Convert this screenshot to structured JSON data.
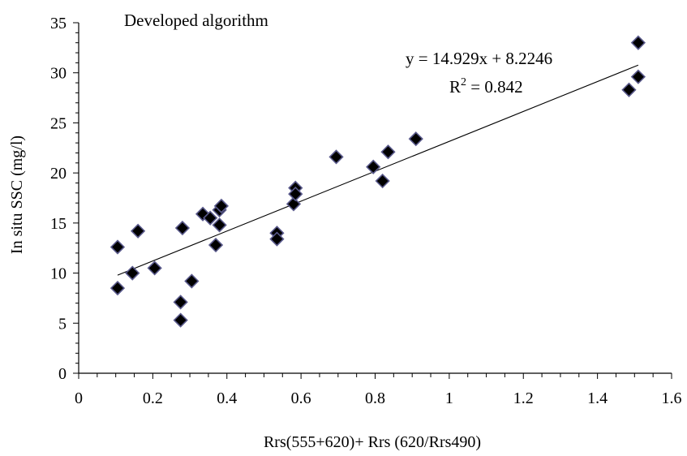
{
  "chart_data": {
    "type": "scatter",
    "title": "Developed algorithm",
    "xlabel": "Rrs(555+620)+ Rrs (620/Rrs490)",
    "ylabel": "In situ SSC (mg/l)",
    "xlim": [
      0,
      1.6
    ],
    "ylim": [
      0,
      35
    ],
    "x_ticks": [
      0,
      0.2,
      0.4,
      0.6,
      0.8,
      1,
      1.2,
      1.4,
      1.6
    ],
    "x_tick_labels": [
      "0",
      "0.2",
      "0.4",
      "0.6",
      "0.8",
      "1",
      "1.2",
      "1.4",
      "1.6"
    ],
    "y_ticks": [
      0,
      5,
      10,
      15,
      20,
      25,
      30,
      35
    ],
    "y_tick_labels": [
      "0",
      "5",
      "10",
      "15",
      "20",
      "25",
      "30",
      "35"
    ],
    "grid": false,
    "marker": "diamond",
    "points": [
      {
        "x": 0.105,
        "y": 12.6
      },
      {
        "x": 0.105,
        "y": 8.5
      },
      {
        "x": 0.145,
        "y": 10.0
      },
      {
        "x": 0.16,
        "y": 14.2
      },
      {
        "x": 0.205,
        "y": 10.5
      },
      {
        "x": 0.275,
        "y": 7.1
      },
      {
        "x": 0.275,
        "y": 5.3
      },
      {
        "x": 0.28,
        "y": 14.5
      },
      {
        "x": 0.305,
        "y": 9.2
      },
      {
        "x": 0.335,
        "y": 15.9
      },
      {
        "x": 0.355,
        "y": 15.5
      },
      {
        "x": 0.37,
        "y": 12.8
      },
      {
        "x": 0.38,
        "y": 14.8
      },
      {
        "x": 0.38,
        "y": 16.3
      },
      {
        "x": 0.385,
        "y": 16.7
      },
      {
        "x": 0.535,
        "y": 14.0
      },
      {
        "x": 0.535,
        "y": 13.4
      },
      {
        "x": 0.58,
        "y": 16.9
      },
      {
        "x": 0.585,
        "y": 18.5
      },
      {
        "x": 0.585,
        "y": 17.9
      },
      {
        "x": 0.695,
        "y": 21.6
      },
      {
        "x": 0.795,
        "y": 20.6
      },
      {
        "x": 0.82,
        "y": 19.2
      },
      {
        "x": 0.835,
        "y": 22.1
      },
      {
        "x": 0.91,
        "y": 23.4
      },
      {
        "x": 1.485,
        "y": 28.3
      },
      {
        "x": 1.51,
        "y": 33.0
      },
      {
        "x": 1.51,
        "y": 29.6
      }
    ],
    "trendline": {
      "slope": 14.929,
      "intercept": 8.2246,
      "x_range": [
        0.105,
        1.51
      ],
      "equation_label": "y = 14.929x + 8.2246",
      "r2_prefix": "R",
      "r2_sup": "2",
      "r2_value": " = 0.842"
    }
  }
}
